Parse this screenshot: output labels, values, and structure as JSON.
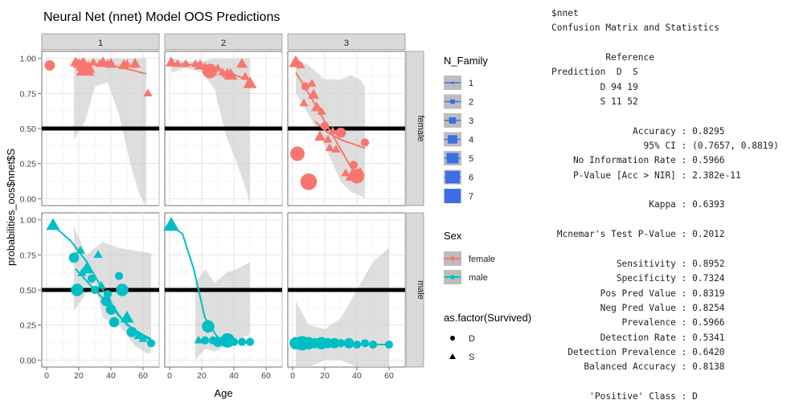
{
  "chart_data": {
    "type": "scatter",
    "title": "Neural Net (nnet) Model OOS Predictions",
    "xlabel": "Age",
    "ylabel": "probabilities_oos$nnet$S",
    "xlim": [
      -3,
      70
    ],
    "ylim": [
      -0.05,
      1.05
    ],
    "xticks": [
      0,
      20,
      40,
      60
    ],
    "yticks": [
      "0.00",
      "0.25",
      "0.50",
      "0.75",
      "1.00"
    ],
    "hline": 0.5,
    "grid": true,
    "col_facets": [
      "1",
      "2",
      "3"
    ],
    "row_facets": [
      "female",
      "male"
    ],
    "colors": {
      "female": "#F8766D",
      "male": "#00BFC4",
      "band": "#cccccc",
      "strip": "#d9d9d9",
      "hline": "#000000"
    },
    "legend": {
      "size": {
        "title": "N_Family",
        "items": [
          "1",
          "2",
          "3",
          "4",
          "5",
          "6",
          "7"
        ],
        "color": "#3c6fe6"
      },
      "color": {
        "title": "Sex",
        "items": [
          "female",
          "male"
        ]
      },
      "shape": {
        "title": "as.factor(Survived)",
        "items": [
          "D",
          "S"
        ]
      }
    },
    "panels": [
      {
        "row": "female",
        "col": "1",
        "points": [
          [
            2,
            0.95,
            3,
            "D"
          ],
          [
            18,
            0.97,
            3,
            "S"
          ],
          [
            20,
            0.96,
            3,
            "S"
          ],
          [
            22,
            0.96,
            3,
            "S"
          ],
          [
            23,
            0.95,
            5,
            "S"
          ],
          [
            24,
            0.92,
            6,
            "S"
          ],
          [
            26,
            0.93,
            4,
            "S"
          ],
          [
            29,
            0.97,
            2,
            "S"
          ],
          [
            33,
            0.96,
            2,
            "S"
          ],
          [
            35,
            0.97,
            3,
            "S"
          ],
          [
            38,
            0.96,
            2,
            "S"
          ],
          [
            40,
            0.96,
            3,
            "S"
          ],
          [
            48,
            0.95,
            3,
            "S"
          ],
          [
            50,
            0.96,
            2,
            "S"
          ],
          [
            55,
            0.96,
            3,
            "S"
          ],
          [
            63,
            0.75,
            2,
            "S"
          ]
        ],
        "fit": [
          [
            17,
            0.965
          ],
          [
            30,
            0.955
          ],
          [
            45,
            0.94
          ],
          [
            62,
            0.89
          ]
        ],
        "band": [
          [
            17,
            0.99,
            0.42
          ],
          [
            24,
            0.99,
            0.55
          ],
          [
            30,
            1.0,
            0.8
          ],
          [
            38,
            1.0,
            0.83
          ],
          [
            45,
            1.0,
            0.6
          ],
          [
            52,
            1.0,
            0.25
          ],
          [
            58,
            1.0,
            0.02
          ],
          [
            62,
            1.0,
            -0.05
          ]
        ]
      },
      {
        "row": "female",
        "col": "2",
        "points": [
          [
            1,
            0.97,
            3,
            "S"
          ],
          [
            5,
            0.96,
            2,
            "S"
          ],
          [
            10,
            0.96,
            2,
            "S"
          ],
          [
            16,
            0.96,
            2,
            "S"
          ],
          [
            19,
            0.95,
            3,
            "S"
          ],
          [
            22,
            0.94,
            2,
            "S"
          ],
          [
            25,
            0.91,
            5,
            "D"
          ],
          [
            27,
            0.9,
            2,
            "S"
          ],
          [
            30,
            0.93,
            2,
            "S"
          ],
          [
            33,
            0.9,
            2,
            "S"
          ],
          [
            36,
            0.89,
            3,
            "S"
          ],
          [
            38,
            0.88,
            4,
            "S"
          ],
          [
            45,
            0.96,
            3,
            "S"
          ],
          [
            47,
            0.87,
            2,
            "S"
          ],
          [
            50,
            0.82,
            4,
            "S"
          ]
        ],
        "fit": [
          [
            1,
            0.965
          ],
          [
            15,
            0.955
          ],
          [
            30,
            0.92
          ],
          [
            40,
            0.885
          ],
          [
            50,
            0.84
          ]
        ],
        "band": [
          [
            1,
            1.0,
            0.9
          ],
          [
            10,
            0.98,
            0.93
          ],
          [
            20,
            0.98,
            0.9
          ],
          [
            28,
            1.0,
            0.78
          ],
          [
            35,
            1.0,
            0.45
          ],
          [
            42,
            1.0,
            0.25
          ],
          [
            48,
            1.0,
            0.05
          ],
          [
            50,
            1.0,
            -0.05
          ]
        ]
      },
      {
        "row": "female",
        "col": "3",
        "points": [
          [
            2,
            0.97,
            4,
            "S"
          ],
          [
            3,
            0.32,
            5,
            "D"
          ],
          [
            5,
            0.95,
            2,
            "S"
          ],
          [
            7,
            0.68,
            2,
            "S"
          ],
          [
            8,
            0.8,
            2,
            "D"
          ],
          [
            10,
            0.12,
            6,
            "D"
          ],
          [
            12,
            0.82,
            2,
            "S"
          ],
          [
            13,
            0.74,
            3,
            "S"
          ],
          [
            15,
            0.65,
            3,
            "S"
          ],
          [
            17,
            0.44,
            3,
            "S"
          ],
          [
            18,
            0.62,
            2,
            "S"
          ],
          [
            20,
            0.52,
            2,
            "D"
          ],
          [
            22,
            0.42,
            2,
            "S"
          ],
          [
            23,
            0.36,
            2,
            "S"
          ],
          [
            25,
            0.48,
            2,
            "S"
          ],
          [
            27,
            0.35,
            2,
            "S"
          ],
          [
            30,
            0.47,
            3,
            "D"
          ],
          [
            33,
            0.18,
            2,
            "S"
          ],
          [
            37,
            0.16,
            4,
            "S"
          ],
          [
            38,
            0.24,
            2,
            "D"
          ],
          [
            40,
            0.16,
            5,
            "D"
          ],
          [
            42,
            0.19,
            2,
            "S"
          ],
          [
            45,
            0.4,
            2,
            "D"
          ]
        ],
        "fit": [
          [
            2,
            0.9
          ],
          [
            10,
            0.75
          ],
          [
            20,
            0.55
          ],
          [
            30,
            0.35
          ],
          [
            40,
            0.15
          ]
        ],
        "fit2": [
          [
            14,
            0.55
          ],
          [
            22,
            0.47
          ],
          [
            30,
            0.42
          ],
          [
            45,
            0.36
          ]
        ],
        "band": [
          [
            2,
            1.0,
            0.75
          ],
          [
            10,
            0.95,
            0.6
          ],
          [
            20,
            0.85,
            0.38
          ],
          [
            30,
            0.85,
            0.12
          ],
          [
            36,
            0.88,
            0.05
          ],
          [
            42,
            0.85,
            0.02
          ],
          [
            45,
            0.8,
            0.0
          ]
        ]
      },
      {
        "row": "male",
        "col": "1",
        "points": [
          [
            4,
            0.96,
            4,
            "S"
          ],
          [
            17,
            0.73,
            3,
            "D"
          ],
          [
            19,
            0.5,
            4,
            "D"
          ],
          [
            21,
            0.78,
            2,
            "S"
          ],
          [
            22,
            0.62,
            2,
            "S"
          ],
          [
            25,
            0.65,
            4,
            "S"
          ],
          [
            28,
            0.58,
            2,
            "D"
          ],
          [
            30,
            0.5,
            2,
            "D"
          ],
          [
            32,
            0.75,
            2,
            "S"
          ],
          [
            34,
            0.53,
            2,
            "S"
          ],
          [
            37,
            0.42,
            3,
            "D"
          ],
          [
            38,
            0.47,
            2,
            "D"
          ],
          [
            40,
            0.36,
            3,
            "D"
          ],
          [
            42,
            0.27,
            3,
            "D"
          ],
          [
            45,
            0.6,
            2,
            "D"
          ],
          [
            47,
            0.5,
            4,
            "D"
          ],
          [
            50,
            0.3,
            4,
            "S"
          ],
          [
            53,
            0.2,
            3,
            "D"
          ],
          [
            57,
            0.17,
            2,
            "S"
          ],
          [
            60,
            0.15,
            2,
            "S"
          ],
          [
            65,
            0.12,
            2,
            "D"
          ]
        ],
        "fit": [
          [
            4,
            0.96
          ],
          [
            15,
            0.85
          ],
          [
            25,
            0.7
          ],
          [
            35,
            0.5
          ],
          [
            45,
            0.32
          ],
          [
            55,
            0.2
          ],
          [
            65,
            0.14
          ]
        ],
        "fit2": [
          [
            18,
            0.65
          ],
          [
            30,
            0.5
          ],
          [
            40,
            0.38
          ],
          [
            50,
            0.25
          ],
          [
            60,
            0.18
          ],
          [
            65,
            0.15
          ]
        ],
        "band": [
          [
            17,
            0.95,
            0.35
          ],
          [
            25,
            0.75,
            0.48
          ],
          [
            30,
            0.8,
            0.55
          ],
          [
            35,
            0.84,
            0.3
          ],
          [
            45,
            0.8,
            0.25
          ],
          [
            55,
            0.78,
            0.1
          ],
          [
            62,
            0.77,
            0.05
          ],
          [
            65,
            0.76,
            0.05
          ]
        ]
      },
      {
        "row": "male",
        "col": "2",
        "points": [
          [
            1,
            0.96,
            5,
            "S"
          ],
          [
            18,
            0.14,
            2,
            "S"
          ],
          [
            22,
            0.14,
            2,
            "D"
          ],
          [
            24,
            0.24,
            4,
            "D"
          ],
          [
            27,
            0.14,
            2,
            "D"
          ],
          [
            30,
            0.13,
            3,
            "D"
          ],
          [
            33,
            0.13,
            2,
            "D"
          ],
          [
            36,
            0.14,
            5,
            "D"
          ],
          [
            40,
            0.13,
            2,
            "D"
          ],
          [
            45,
            0.13,
            2,
            "D"
          ],
          [
            50,
            0.13,
            2,
            "D"
          ]
        ],
        "fit": [
          [
            1,
            0.96
          ],
          [
            8,
            0.9
          ],
          [
            15,
            0.65
          ],
          [
            22,
            0.3
          ],
          [
            30,
            0.16
          ],
          [
            40,
            0.13
          ],
          [
            50,
            0.12
          ]
        ],
        "band": [
          [
            16,
            0.55,
            0.0
          ],
          [
            22,
            0.65,
            0.08
          ],
          [
            28,
            0.55,
            0.06
          ],
          [
            35,
            0.62,
            0.1
          ],
          [
            42,
            0.65,
            0.15
          ],
          [
            50,
            0.7,
            0.18
          ]
        ]
      },
      {
        "row": "male",
        "col": "3",
        "points": [
          [
            2,
            0.12,
            4,
            "D"
          ],
          [
            6,
            0.12,
            5,
            "D"
          ],
          [
            10,
            0.12,
            4,
            "D"
          ],
          [
            14,
            0.12,
            3,
            "D"
          ],
          [
            18,
            0.12,
            4,
            "D"
          ],
          [
            22,
            0.12,
            3,
            "D"
          ],
          [
            26,
            0.12,
            3,
            "D"
          ],
          [
            30,
            0.12,
            2,
            "D"
          ],
          [
            35,
            0.12,
            3,
            "D"
          ],
          [
            40,
            0.11,
            2,
            "D"
          ],
          [
            45,
            0.12,
            2,
            "D"
          ],
          [
            50,
            0.11,
            2,
            "D"
          ],
          [
            60,
            0.11,
            2,
            "D"
          ]
        ],
        "fit": [
          [
            2,
            0.12
          ],
          [
            30,
            0.115
          ],
          [
            60,
            0.11
          ]
        ],
        "band": [
          [
            2,
            0.42,
            -0.05
          ],
          [
            10,
            0.25,
            -0.05
          ],
          [
            20,
            0.22,
            0.0
          ],
          [
            30,
            0.3,
            0.0
          ],
          [
            40,
            0.5,
            -0.05
          ],
          [
            50,
            0.7,
            -0.05
          ],
          [
            60,
            0.8,
            -0.05
          ]
        ]
      }
    ]
  },
  "stats_lines": [
    "$nnet",
    "Confusion Matrix and Statistics",
    "",
    "          Reference",
    "Prediction  D  S",
    "         D 94 19",
    "         S 11 52",
    "",
    "               Accuracy : 0.8295",
    "                 95% CI : (0.7657, 0.8819)",
    "    No Information Rate : 0.5966",
    "    P-Value [Acc > NIR] : 2.382e-11",
    "",
    "                  Kappa : 0.6393",
    "",
    " Mcnemar's Test P-Value : 0.2012",
    "",
    "            Sensitivity : 0.8952",
    "            Specificity : 0.7324",
    "         Pos Pred Value : 0.8319",
    "         Neg Pred Value : 0.8254",
    "             Prevalence : 0.5966",
    "         Detection Rate : 0.5341",
    "   Detection Prevalence : 0.6420",
    "      Balanced Accuracy : 0.8138",
    "",
    "       'Positive' Class : D"
  ]
}
